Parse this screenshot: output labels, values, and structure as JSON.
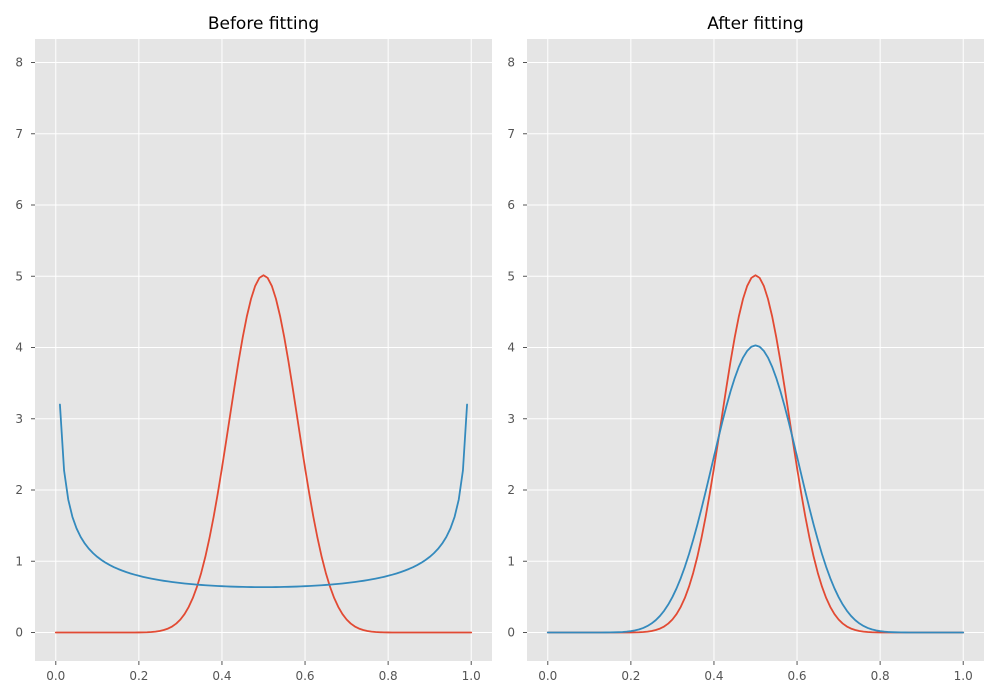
{
  "figure": {
    "background": "#ffffff",
    "plot_background": "#e5e5e5",
    "grid_color": "#ffffff"
  },
  "chart_data": [
    {
      "type": "line",
      "title": "Before fitting",
      "xlabel": "",
      "ylabel": "",
      "xlim": [
        -0.05,
        1.05
      ],
      "ylim": [
        -0.4,
        8.33
      ],
      "xticks": [
        0.0,
        0.2,
        0.4,
        0.6,
        0.8,
        1.0
      ],
      "xtick_labels": [
        "0.0",
        "0.2",
        "0.4",
        "0.6",
        "0.8",
        "1.0"
      ],
      "yticks": [
        0,
        1,
        2,
        3,
        4,
        5,
        6,
        7,
        8
      ],
      "ytick_labels": [
        "0",
        "1",
        "2",
        "3",
        "4",
        "5",
        "6",
        "7",
        "8"
      ],
      "grid": true,
      "legend": "none",
      "series": [
        {
          "color": "#e24a33",
          "distribution": "beta",
          "params": {
            "a": 20,
            "b": 20
          },
          "x_range": [
            0.0,
            1.0
          ],
          "num_points": 101
        },
        {
          "color": "#348abd",
          "distribution": "beta",
          "params": {
            "a": 0.5,
            "b": 0.5
          },
          "x_range": [
            0.01,
            0.99
          ],
          "num_points": 99
        }
      ]
    },
    {
      "type": "line",
      "title": "After fitting",
      "xlabel": "",
      "ylabel": "",
      "xlim": [
        -0.05,
        1.05
      ],
      "ylim": [
        -0.4,
        8.33
      ],
      "xticks": [
        0.0,
        0.2,
        0.4,
        0.6,
        0.8,
        1.0
      ],
      "xtick_labels": [
        "0.0",
        "0.2",
        "0.4",
        "0.6",
        "0.8",
        "1.0"
      ],
      "yticks": [
        0,
        1,
        2,
        3,
        4,
        5,
        6,
        7,
        8
      ],
      "ytick_labels": [
        "0",
        "1",
        "2",
        "3",
        "4",
        "5",
        "6",
        "7",
        "8"
      ],
      "grid": true,
      "legend": "none",
      "series": [
        {
          "color": "#e24a33",
          "distribution": "beta",
          "params": {
            "a": 20,
            "b": 20
          },
          "x_range": [
            0.0,
            1.0
          ],
          "num_points": 101
        },
        {
          "color": "#348abd",
          "distribution": "beta",
          "params": {
            "a": 13,
            "b": 13
          },
          "x_range": [
            0.0,
            1.0
          ],
          "num_points": 101
        }
      ]
    }
  ]
}
